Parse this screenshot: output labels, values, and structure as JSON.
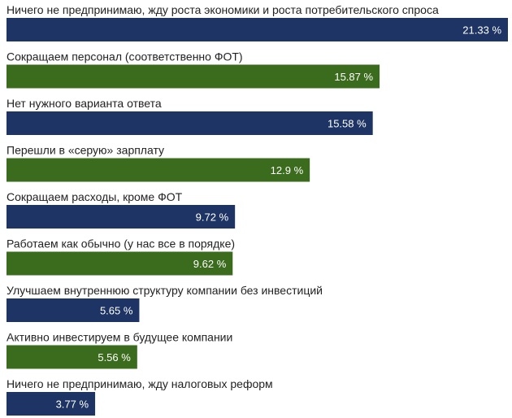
{
  "chart_data": {
    "type": "bar",
    "orientation": "horizontal",
    "categories": [
      "Ничего не предпринимаю, жду роста экономики и роста потребительского спроса",
      "Сокращаем персонал (соответственно ФОТ)",
      "Нет нужного варианта ответа",
      "Перешли в «серую» зарплату",
      "Сокращаем расходы, кроме ФОТ",
      "Работаем как обычно (у нас все в порядке)",
      "Улучшаем внутреннюю структуру компании без инвестиций",
      "Активно инвестируем в будущее компании",
      "Ничего не предпринимаю, жду налоговых реформ"
    ],
    "values": [
      21.33,
      15.87,
      15.58,
      12.9,
      9.72,
      9.62,
      5.65,
      5.56,
      3.77
    ],
    "value_labels": [
      "21.33 %",
      "15.87 %",
      "15.58 %",
      "12.9 %",
      "9.72 %",
      "9.62 %",
      "5.65 %",
      "5.56 %",
      "3.77 %"
    ],
    "bar_colors": [
      "#1d3464",
      "#3b6b1c",
      "#1d3464",
      "#3b6b1c",
      "#1d3464",
      "#3b6b1c",
      "#1d3464",
      "#3b6b1c",
      "#1d3464"
    ],
    "xlim": [
      0,
      21.33
    ],
    "grid": false,
    "legend": "none"
  }
}
